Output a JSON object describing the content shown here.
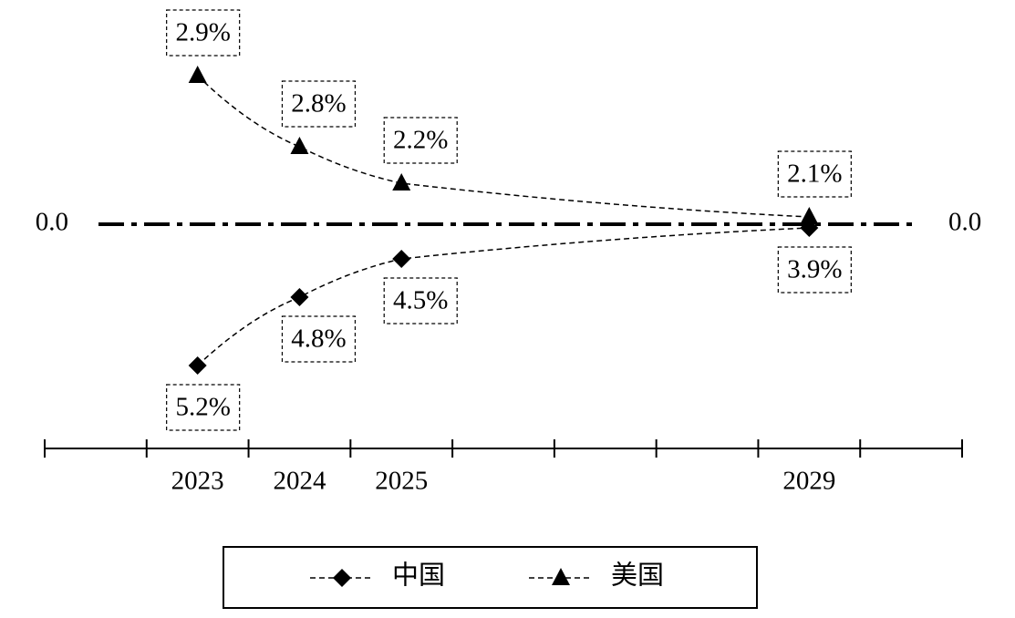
{
  "chart_data": {
    "type": "line",
    "x": [
      2023,
      2024,
      2025,
      2029
    ],
    "xlim": [
      2021.5,
      2030.5
    ],
    "xticks": [
      2021.5,
      2022.5,
      2023.5,
      2024.5,
      2025.5,
      2026.5,
      2027.5,
      2028.5,
      2029.5,
      2030.5
    ],
    "yticks": [
      {
        "value": 0,
        "label": "0.0"
      }
    ],
    "y2ticks": [
      {
        "value": 0,
        "label": "0.0"
      }
    ],
    "series": [
      {
        "name": "中国",
        "color": "#000000",
        "marker": "diamond",
        "side": "below",
        "values": [
          5.2,
          4.8,
          4.5,
          3.9
        ],
        "value_labels": [
          "5.2%",
          "4.8%",
          "4.5%",
          "3.9%"
        ]
      },
      {
        "name": "美国",
        "color": "#000000",
        "marker": "triangle",
        "side": "above",
        "values": [
          2.9,
          2.8,
          2.2,
          2.1
        ],
        "value_labels": [
          "2.9%",
          "2.8%",
          "2.2%",
          "2.1%"
        ]
      }
    ]
  }
}
